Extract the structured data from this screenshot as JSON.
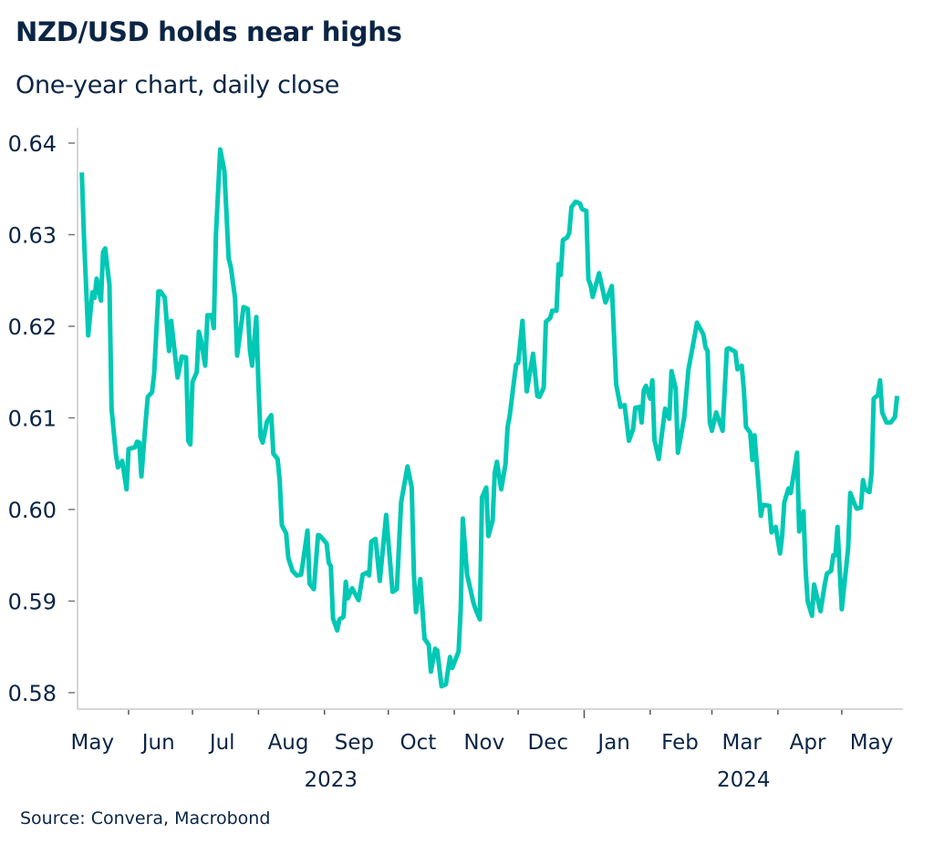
{
  "header": {
    "title": "NZD/USD holds near highs",
    "subtitle": "One-year chart, daily close"
  },
  "footer": {
    "source": "Source: Convera, Macrobond"
  },
  "chart_data": {
    "type": "line",
    "title": "NZD/USD holds near highs",
    "subtitle": "One-year chart, daily close",
    "xlabel": "",
    "ylabel": "",
    "ylim": [
      0.578,
      0.642
    ],
    "yticks": [
      "0.58",
      "0.59",
      "0.60",
      "0.61",
      "0.62",
      "0.63",
      "0.64"
    ],
    "month_labels": [
      {
        "label": "May",
        "date": "2023-05-15"
      },
      {
        "label": "Jun",
        "date": "2023-06-15"
      },
      {
        "label": "Jul",
        "date": "2023-07-15"
      },
      {
        "label": "Aug",
        "date": "2023-08-15"
      },
      {
        "label": "Sep",
        "date": "2023-09-15"
      },
      {
        "label": "Oct",
        "date": "2023-10-15"
      },
      {
        "label": "Nov",
        "date": "2023-11-15"
      },
      {
        "label": "Dec",
        "date": "2023-12-15"
      },
      {
        "label": "Jan",
        "date": "2024-01-15"
      },
      {
        "label": "Feb",
        "date": "2024-02-15"
      },
      {
        "label": "Mar",
        "date": "2024-03-15"
      },
      {
        "label": "Apr",
        "date": "2024-04-15"
      },
      {
        "label": "May",
        "date": "2024-05-15"
      }
    ],
    "year_labels": [
      "2023",
      "2024"
    ],
    "grid": false,
    "legend": "none",
    "colors": {
      "line": "#00c8b4",
      "text": "#0b2545",
      "axis": "#c8c8c8"
    },
    "series": [
      {
        "points": [
          [
            "2023-05-10",
            0.6368
          ],
          [
            "2023-05-11",
            0.6299
          ],
          [
            "2023-05-13",
            0.619
          ],
          [
            "2023-05-15",
            0.6237
          ],
          [
            "2023-05-16",
            0.6231
          ],
          [
            "2023-05-17",
            0.6252
          ],
          [
            "2023-05-19",
            0.6228
          ],
          [
            "2023-05-20",
            0.6281
          ],
          [
            "2023-05-21",
            0.6285
          ],
          [
            "2023-05-23",
            0.6245
          ],
          [
            "2023-05-24",
            0.611
          ],
          [
            "2023-05-26",
            0.6061
          ],
          [
            "2023-05-27",
            0.6046
          ],
          [
            "2023-05-29",
            0.6053
          ],
          [
            "2023-05-31",
            0.6022
          ],
          [
            "2023-06-01",
            0.6066
          ],
          [
            "2023-06-04",
            0.6068
          ],
          [
            "2023-06-05",
            0.6074
          ],
          [
            "2023-06-06",
            0.6073
          ],
          [
            "2023-06-07",
            0.6036
          ],
          [
            "2023-06-09",
            0.6096
          ],
          [
            "2023-06-10",
            0.6123
          ],
          [
            "2023-06-12",
            0.6128
          ],
          [
            "2023-06-13",
            0.6148
          ],
          [
            "2023-06-15",
            0.6238
          ],
          [
            "2023-06-16",
            0.6238
          ],
          [
            "2023-06-18",
            0.6231
          ],
          [
            "2023-06-20",
            0.6173
          ],
          [
            "2023-06-21",
            0.6206
          ],
          [
            "2023-06-24",
            0.6144
          ],
          [
            "2023-06-26",
            0.6167
          ],
          [
            "2023-06-28",
            0.6166
          ],
          [
            "2023-06-29",
            0.6075
          ],
          [
            "2023-06-30",
            0.6071
          ],
          [
            "2023-07-01",
            0.6139
          ],
          [
            "2023-07-03",
            0.615
          ],
          [
            "2023-07-04",
            0.6194
          ],
          [
            "2023-07-05",
            0.6185
          ],
          [
            "2023-07-07",
            0.6157
          ],
          [
            "2023-07-08",
            0.6212
          ],
          [
            "2023-07-10",
            0.6212
          ],
          [
            "2023-07-11",
            0.6198
          ],
          [
            "2023-07-12",
            0.6299
          ],
          [
            "2023-07-14",
            0.6393
          ],
          [
            "2023-07-16",
            0.637
          ],
          [
            "2023-07-18",
            0.6274
          ],
          [
            "2023-07-19",
            0.6265
          ],
          [
            "2023-07-21",
            0.6231
          ],
          [
            "2023-07-22",
            0.6168
          ],
          [
            "2023-07-25",
            0.6221
          ],
          [
            "2023-07-27",
            0.6219
          ],
          [
            "2023-07-28",
            0.6174
          ],
          [
            "2023-07-29",
            0.6157
          ],
          [
            "2023-07-31",
            0.621
          ],
          [
            "2023-08-01",
            0.6135
          ],
          [
            "2023-08-02",
            0.6079
          ],
          [
            "2023-08-03",
            0.6073
          ],
          [
            "2023-08-05",
            0.6096
          ],
          [
            "2023-08-07",
            0.6103
          ],
          [
            "2023-08-08",
            0.6061
          ],
          [
            "2023-08-10",
            0.6055
          ],
          [
            "2023-08-11",
            0.6031
          ],
          [
            "2023-08-12",
            0.5983
          ],
          [
            "2023-08-14",
            0.5974
          ],
          [
            "2023-08-15",
            0.5947
          ],
          [
            "2023-08-17",
            0.5933
          ],
          [
            "2023-08-19",
            0.5928
          ],
          [
            "2023-08-21",
            0.5929
          ],
          [
            "2023-08-22",
            0.5944
          ],
          [
            "2023-08-24",
            0.5977
          ],
          [
            "2023-08-25",
            0.5919
          ],
          [
            "2023-08-27",
            0.5913
          ],
          [
            "2023-08-29",
            0.5972
          ],
          [
            "2023-08-30",
            0.5971
          ],
          [
            "2023-09-02",
            0.5963
          ],
          [
            "2023-09-03",
            0.5942
          ],
          [
            "2023-09-04",
            0.5938
          ],
          [
            "2023-09-05",
            0.5881
          ],
          [
            "2023-09-07",
            0.5868
          ],
          [
            "2023-09-08",
            0.588
          ],
          [
            "2023-09-10",
            0.5883
          ],
          [
            "2023-09-11",
            0.5921
          ],
          [
            "2023-09-12",
            0.5903
          ],
          [
            "2023-09-14",
            0.5914
          ],
          [
            "2023-09-17",
            0.5901
          ],
          [
            "2023-09-19",
            0.5929
          ],
          [
            "2023-09-21",
            0.5931
          ],
          [
            "2023-09-22",
            0.5928
          ],
          [
            "2023-09-23",
            0.5965
          ],
          [
            "2023-09-25",
            0.5968
          ],
          [
            "2023-09-27",
            0.5922
          ],
          [
            "2023-09-30",
            0.5994
          ],
          [
            "2023-10-03",
            0.591
          ],
          [
            "2023-10-05",
            0.5913
          ],
          [
            "2023-10-07",
            0.6008
          ],
          [
            "2023-10-10",
            0.6047
          ],
          [
            "2023-10-12",
            0.6024
          ],
          [
            "2023-10-13",
            0.5929
          ],
          [
            "2023-10-14",
            0.5888
          ],
          [
            "2023-10-16",
            0.5924
          ],
          [
            "2023-10-18",
            0.5859
          ],
          [
            "2023-10-20",
            0.5852
          ],
          [
            "2023-10-21",
            0.5823
          ],
          [
            "2023-10-23",
            0.5848
          ],
          [
            "2023-10-24",
            0.5846
          ],
          [
            "2023-10-26",
            0.5807
          ],
          [
            "2023-10-28",
            0.5809
          ],
          [
            "2023-10-30",
            0.5839
          ],
          [
            "2023-10-31",
            0.5827
          ],
          [
            "2023-11-03",
            0.5845
          ],
          [
            "2023-11-04",
            0.5891
          ],
          [
            "2023-11-05",
            0.599
          ],
          [
            "2023-11-07",
            0.5929
          ],
          [
            "2023-11-10",
            0.5898
          ],
          [
            "2023-11-11",
            0.5891
          ],
          [
            "2023-11-13",
            0.588
          ],
          [
            "2023-11-14",
            0.6013
          ],
          [
            "2023-11-16",
            0.6024
          ],
          [
            "2023-11-17",
            0.5971
          ],
          [
            "2023-11-19",
            0.5988
          ],
          [
            "2023-11-20",
            0.604
          ],
          [
            "2023-11-21",
            0.6052
          ],
          [
            "2023-11-23",
            0.6022
          ],
          [
            "2023-11-25",
            0.6049
          ],
          [
            "2023-11-26",
            0.609
          ],
          [
            "2023-11-27",
            0.6102
          ],
          [
            "2023-11-29",
            0.614
          ],
          [
            "2023-11-30",
            0.6158
          ],
          [
            "2023-12-01",
            0.616
          ],
          [
            "2023-12-03",
            0.6206
          ],
          [
            "2023-12-05",
            0.6129
          ],
          [
            "2023-12-08",
            0.617
          ],
          [
            "2023-12-10",
            0.6124
          ],
          [
            "2023-12-11",
            0.6123
          ],
          [
            "2023-12-13",
            0.6133
          ],
          [
            "2023-12-14",
            0.6205
          ],
          [
            "2023-12-16",
            0.6209
          ],
          [
            "2023-12-17",
            0.6217
          ],
          [
            "2023-12-19",
            0.6217
          ],
          [
            "2023-12-20",
            0.6268
          ],
          [
            "2023-12-21",
            0.6256
          ],
          [
            "2023-12-22",
            0.6294
          ],
          [
            "2023-12-24",
            0.6297
          ],
          [
            "2023-12-25",
            0.6302
          ],
          [
            "2023-12-26",
            0.633
          ],
          [
            "2023-12-28",
            0.6336
          ],
          [
            "2023-12-30",
            0.6334
          ],
          [
            "2023-12-31",
            0.6328
          ],
          [
            "2024-01-02",
            0.6326
          ],
          [
            "2024-01-03",
            0.6251
          ],
          [
            "2024-01-04",
            0.6245
          ],
          [
            "2024-01-05",
            0.6232
          ],
          [
            "2024-01-08",
            0.6258
          ],
          [
            "2024-01-11",
            0.6226
          ],
          [
            "2024-01-14",
            0.6244
          ],
          [
            "2024-01-16",
            0.6137
          ],
          [
            "2024-01-18",
            0.6112
          ],
          [
            "2024-01-20",
            0.6114
          ],
          [
            "2024-01-22",
            0.6075
          ],
          [
            "2024-01-24",
            0.6088
          ],
          [
            "2024-01-25",
            0.6111
          ],
          [
            "2024-01-27",
            0.6112
          ],
          [
            "2024-01-28",
            0.6095
          ],
          [
            "2024-01-29",
            0.613
          ],
          [
            "2024-01-30",
            0.6135
          ],
          [
            "2024-02-01",
            0.6121
          ],
          [
            "2024-02-02",
            0.6141
          ],
          [
            "2024-02-03",
            0.6076
          ],
          [
            "2024-02-05",
            0.6055
          ],
          [
            "2024-02-08",
            0.611
          ],
          [
            "2024-02-10",
            0.6099
          ],
          [
            "2024-02-11",
            0.6151
          ],
          [
            "2024-02-13",
            0.6132
          ],
          [
            "2024-02-14",
            0.6062
          ],
          [
            "2024-02-17",
            0.6101
          ],
          [
            "2024-02-19",
            0.6153
          ],
          [
            "2024-02-21",
            0.6178
          ],
          [
            "2024-02-23",
            0.6204
          ],
          [
            "2024-02-26",
            0.6191
          ],
          [
            "2024-02-27",
            0.6177
          ],
          [
            "2024-02-28",
            0.6173
          ],
          [
            "2024-02-29",
            0.6095
          ],
          [
            "2024-03-01",
            0.6086
          ],
          [
            "2024-03-03",
            0.6106
          ],
          [
            "2024-03-06",
            0.6086
          ],
          [
            "2024-03-07",
            0.613
          ],
          [
            "2024-03-08",
            0.6175
          ],
          [
            "2024-03-09",
            0.6176
          ],
          [
            "2024-03-12",
            0.6172
          ],
          [
            "2024-03-13",
            0.6153
          ],
          [
            "2024-03-15",
            0.6157
          ],
          [
            "2024-03-16",
            0.6131
          ],
          [
            "2024-03-17",
            0.609
          ],
          [
            "2024-03-19",
            0.6084
          ],
          [
            "2024-03-20",
            0.6054
          ],
          [
            "2024-03-21",
            0.6081
          ],
          [
            "2024-03-23",
            0.6023
          ],
          [
            "2024-03-24",
            0.5993
          ],
          [
            "2024-03-25",
            0.6005
          ],
          [
            "2024-03-28",
            0.6004
          ],
          [
            "2024-03-29",
            0.5975
          ],
          [
            "2024-03-31",
            0.5981
          ],
          [
            "2024-04-02",
            0.5952
          ],
          [
            "2024-04-03",
            0.5971
          ],
          [
            "2024-04-04",
            0.6008
          ],
          [
            "2024-04-06",
            0.6023
          ],
          [
            "2024-04-07",
            0.6018
          ],
          [
            "2024-04-10",
            0.6062
          ],
          [
            "2024-04-11",
            0.5976
          ],
          [
            "2024-04-13",
            0.5998
          ],
          [
            "2024-04-14",
            0.5935
          ],
          [
            "2024-04-15",
            0.59
          ],
          [
            "2024-04-17",
            0.5884
          ],
          [
            "2024-04-18",
            0.5918
          ],
          [
            "2024-04-21",
            0.5889
          ],
          [
            "2024-04-23",
            0.5918
          ],
          [
            "2024-04-24",
            0.593
          ],
          [
            "2024-04-26",
            0.5933
          ],
          [
            "2024-04-27",
            0.595
          ],
          [
            "2024-04-28",
            0.595
          ],
          [
            "2024-04-29",
            0.5981
          ],
          [
            "2024-05-01",
            0.5891
          ],
          [
            "2024-05-04",
            0.5958
          ],
          [
            "2024-05-05",
            0.6018
          ],
          [
            "2024-05-07",
            0.6006
          ],
          [
            "2024-05-08",
            0.6001
          ],
          [
            "2024-05-10",
            0.6002
          ],
          [
            "2024-05-11",
            0.6032
          ],
          [
            "2024-05-12",
            0.6022
          ],
          [
            "2024-05-14",
            0.6019
          ],
          [
            "2024-05-15",
            0.604
          ],
          [
            "2024-05-16",
            0.6121
          ],
          [
            "2024-05-18",
            0.6125
          ],
          [
            "2024-05-19",
            0.6141
          ],
          [
            "2024-05-20",
            0.6106
          ],
          [
            "2024-05-22",
            0.6095
          ],
          [
            "2024-05-24",
            0.6095
          ],
          [
            "2024-05-26",
            0.6101
          ],
          [
            "2024-05-27",
            0.6124
          ]
        ]
      }
    ]
  }
}
